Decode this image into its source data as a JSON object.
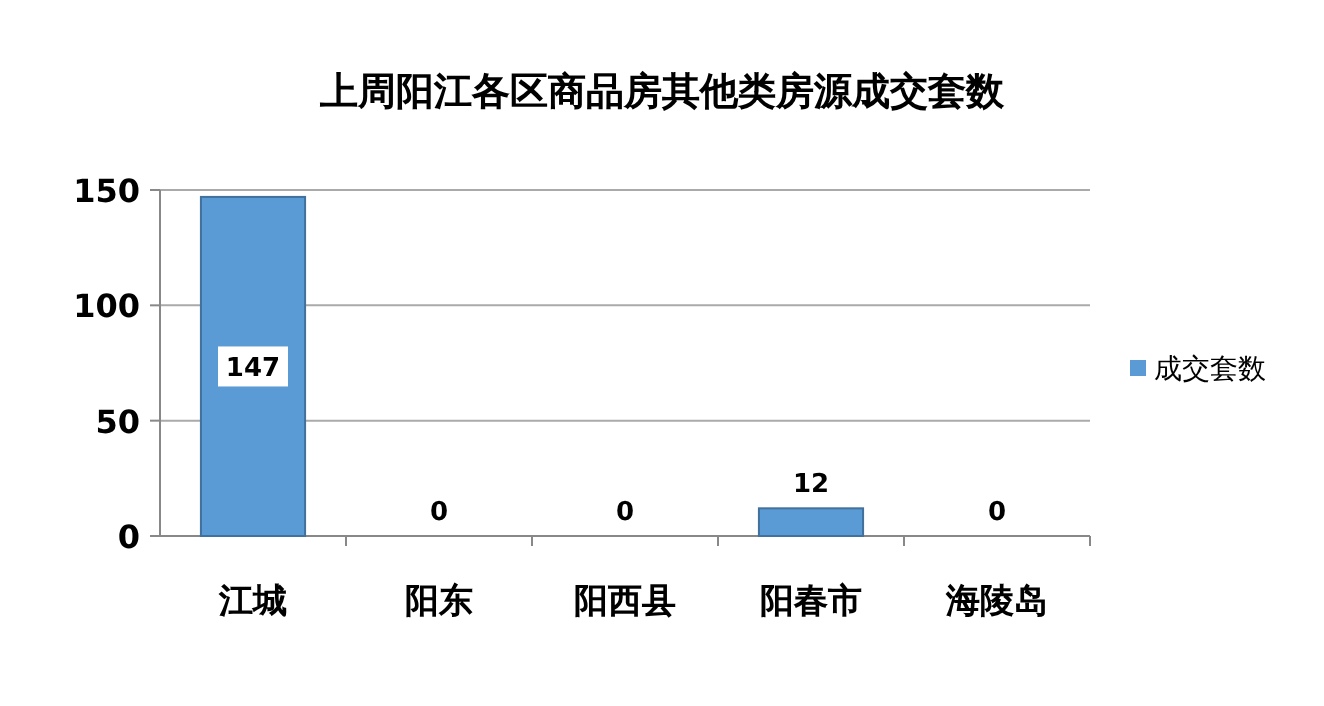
{
  "chart_data": {
    "type": "bar",
    "title": "上周阳江各区商品房其他类房源成交套数",
    "categories": [
      "江城",
      "阳东",
      "阳西县",
      "阳春市",
      "海陵岛"
    ],
    "series": [
      {
        "name": "成交套数",
        "color": "#5b9bd5",
        "values": [
          147,
          0,
          0,
          12,
          0
        ]
      }
    ],
    "ylim": [
      0,
      150
    ],
    "yticks": [
      0,
      50,
      100,
      150
    ],
    "grid": "y",
    "legend": "right",
    "data_labels": true
  }
}
